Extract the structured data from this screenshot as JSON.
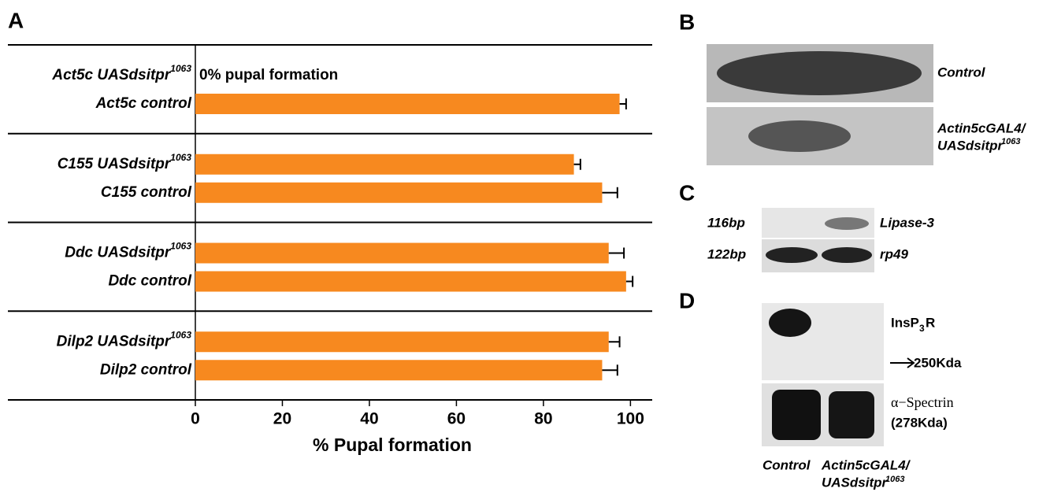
{
  "chart_data": {
    "type": "bar",
    "orientation": "horizontal",
    "panel_label": "A",
    "categories": [
      "Act5c UASdsitpr",
      "Act5c control",
      "C155 UASdsitpr",
      "C155 control",
      "Ddc UASdsitpr",
      "Ddc control",
      "Dilp2 UASdsitpr",
      "Dilp2 control"
    ],
    "category_superscripts": [
      "1063",
      null,
      "1063",
      null,
      "1063",
      null,
      "1063",
      null
    ],
    "series": [
      {
        "color": "#f7891f",
        "values": [
          0,
          97.5,
          87,
          93.5,
          95,
          99,
          95,
          93.5
        ],
        "errors": [
          0,
          1.5,
          1.5,
          3.5,
          3.5,
          1.5,
          2.5,
          3.5
        ]
      }
    ],
    "annotation": "0% pupal formation",
    "xlabel": "% Pupal formation",
    "xlim": [
      0,
      105
    ],
    "xticks": [
      0,
      20,
      40,
      60,
      80,
      100
    ]
  },
  "panel_b": {
    "label": "B",
    "top": "Control",
    "bottom_line1": "Actin5cGAL4/",
    "bottom_line2": "UASdsitpr",
    "bottom_sup": "1063"
  },
  "panel_c": {
    "label": "C",
    "sizes": [
      "116bp",
      "122bp"
    ],
    "genes": [
      "Lipase-3",
      "rp49"
    ]
  },
  "panel_d": {
    "label": "D",
    "band1_pre": "InsP",
    "band1_sub": "3",
    "band1_post": "R",
    "marker": "250Kda",
    "band2_line1": "α−Spectrin",
    "band2_line2": "(278Kda)",
    "lane1": "Control",
    "lane2_line1": "Actin5cGAL4/",
    "lane2_line2": "UASdsitpr",
    "lane2_sup": "1063"
  }
}
